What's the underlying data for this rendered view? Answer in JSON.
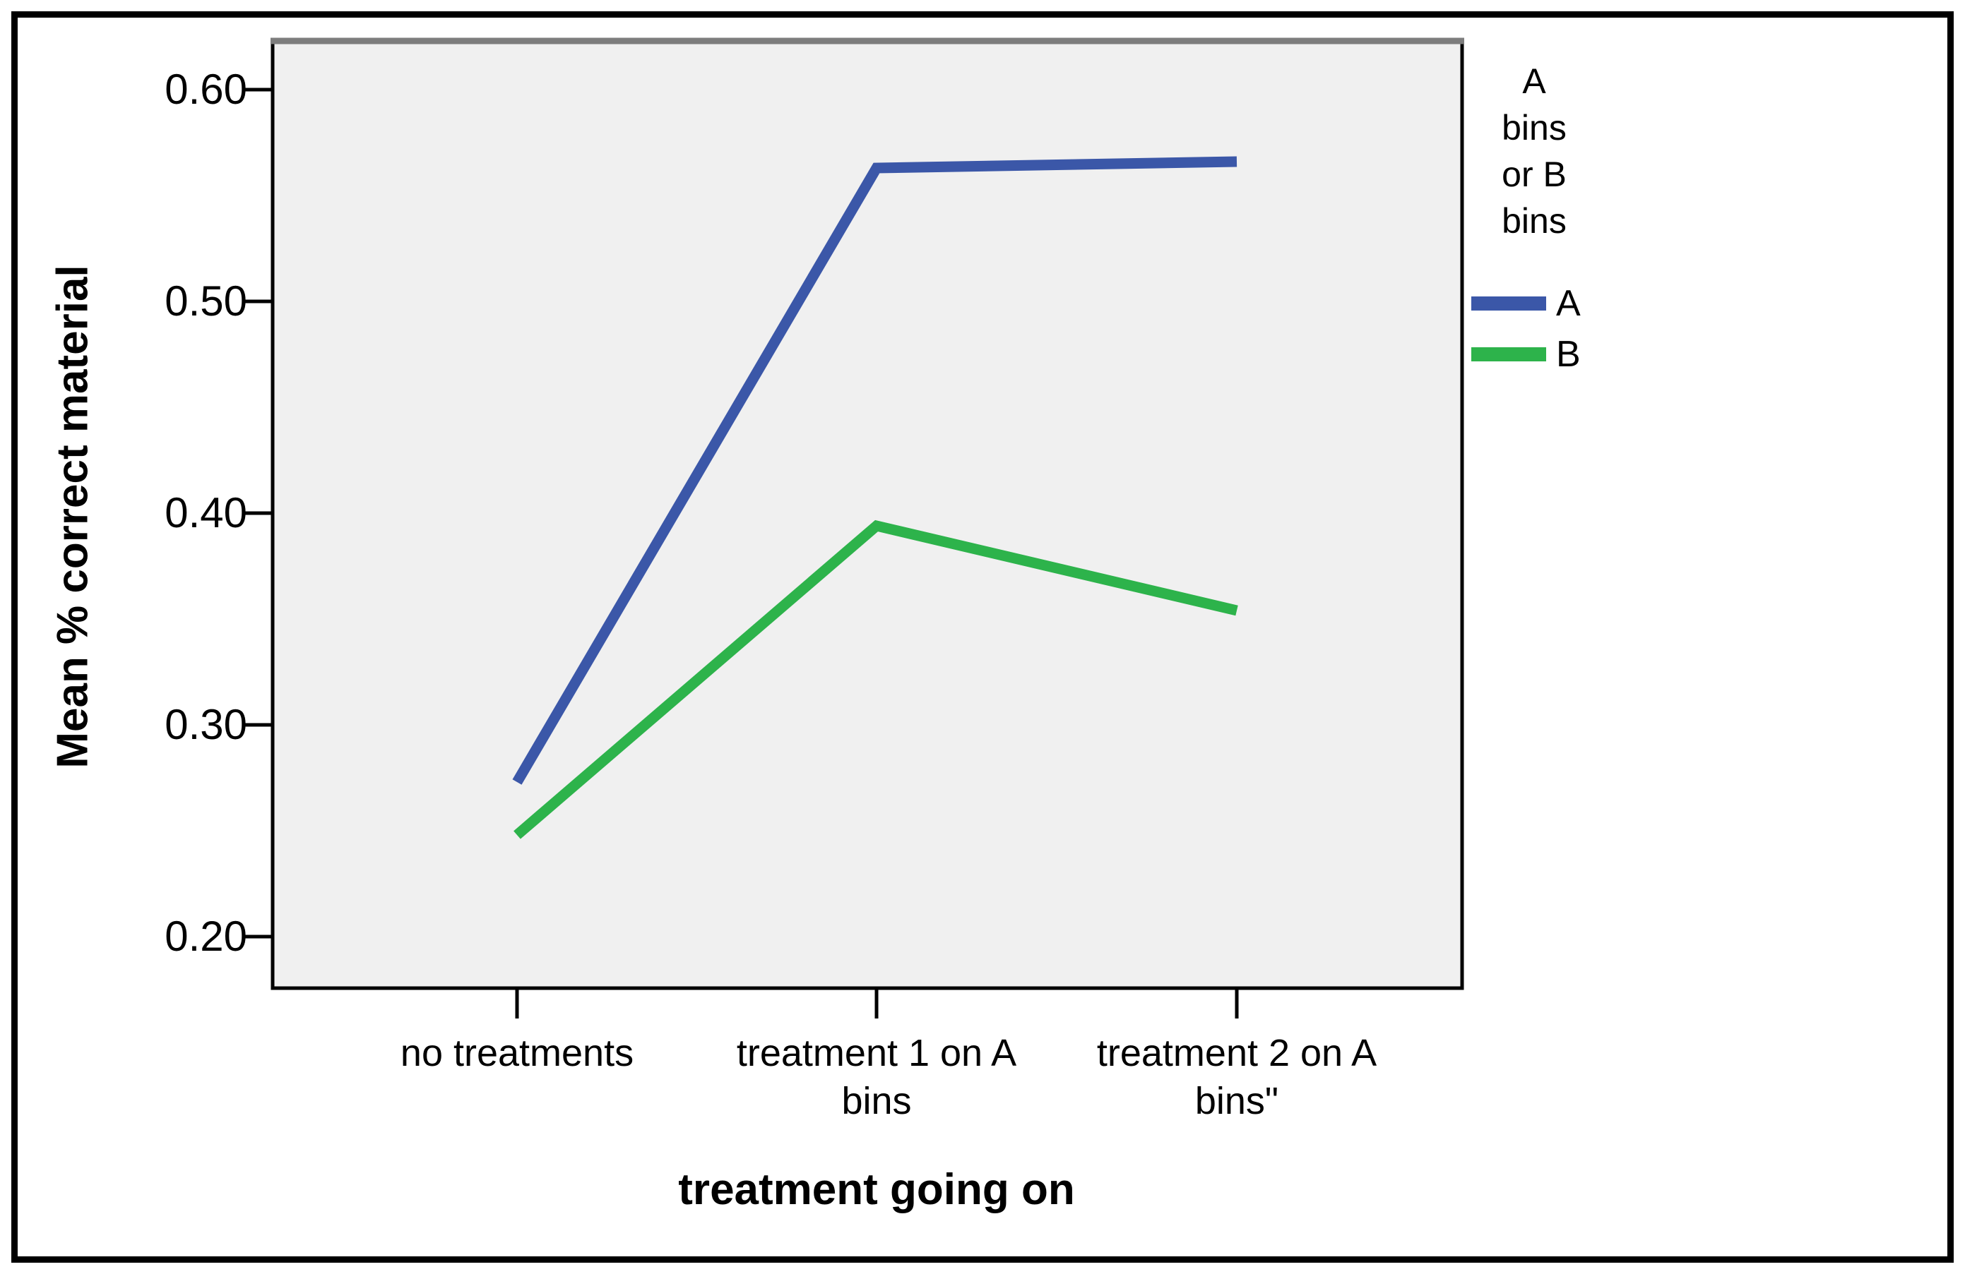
{
  "chart_data": {
    "type": "line",
    "categories": [
      "no treatments",
      "treatment 1 on A\nbins",
      "treatment 2 on A\nbins\""
    ],
    "series": [
      {
        "name": "A",
        "color": "#3B57A8",
        "values": [
          0.273,
          0.563,
          0.566
        ]
      },
      {
        "name": "B",
        "color": "#2DB34B",
        "values": [
          0.248,
          0.394,
          0.354
        ]
      }
    ],
    "title": "",
    "xlabel": "treatment going on",
    "ylabel": "Mean % correct material",
    "yticks": {
      "values": [
        0.6,
        0.5,
        0.4,
        0.3,
        0.2
      ],
      "labels": [
        "0.60",
        "0.50",
        "0.40",
        "0.30",
        "0.20"
      ]
    },
    "ylim": [
      0.176,
      0.623
    ],
    "grid": false,
    "plot_background": "#F0F0F0",
    "plot_border_color": "#000000",
    "plot_border_top_color": "#7D7D7D",
    "legend": {
      "title": "A\nbins\nor B\nbins",
      "position": "right",
      "entries": [
        "A",
        "B"
      ]
    }
  }
}
